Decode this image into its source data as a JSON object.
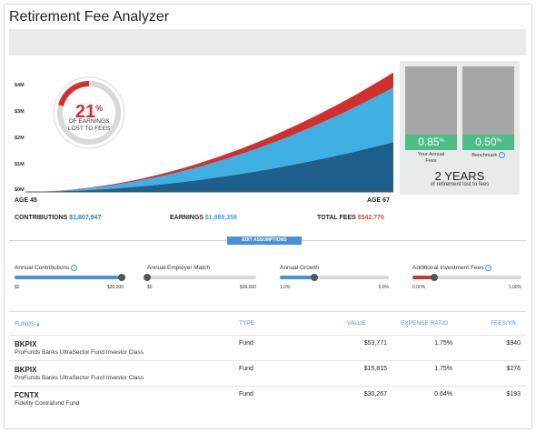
{
  "app": {
    "title": "Retirement Fee Analyzer"
  },
  "chart": {
    "y_ticks": [
      "$4M",
      "$3M",
      "$2M",
      "$1M",
      "$0M"
    ],
    "start_label": "AGE 45",
    "end_label": "AGE 67",
    "colors": {
      "contributions": "#1f5f8b",
      "earnings": "#3fb0e3",
      "fees": "#d32f2f"
    }
  },
  "chart_data": {
    "type": "area",
    "x": [
      "AGE 45",
      "AGE 67"
    ],
    "ylim": [
      0,
      4000000
    ],
    "series": [
      {
        "name": "CONTRIBUTIONS",
        "values": [
          0,
          1807947
        ]
      },
      {
        "name": "EARNINGS",
        "values": [
          0,
          1988358
        ]
      },
      {
        "name": "TOTAL FEES",
        "values": [
          0,
          542776
        ]
      }
    ]
  },
  "donut": {
    "percent": "21",
    "percent_sign": "%",
    "caption_line1": "OF EARNINGS",
    "caption_line2": "LOST TO FEES",
    "fraction": 0.21
  },
  "compare": {
    "yours_value": "0.85",
    "yours_label_1": "Your Annual",
    "yours_label_2": "Fees",
    "benchmark_value": "0.50",
    "benchmark_label": "Benchmark",
    "pct": "%",
    "years_value": "2 YEARS",
    "years_sub": "of retirement lost to fees"
  },
  "totals": {
    "contributions_label": "CONTRIBUTIONS",
    "contributions_value": "$1,807,947",
    "earnings_label": "EARNINGS",
    "earnings_value": "$1,988,358",
    "fees_label": "TOTAL FEES",
    "fees_value": "$542,776"
  },
  "edit_button": "EDIT ASSUMPTIONS",
  "sliders": [
    {
      "label": "Annual Contributions",
      "info": true,
      "min": "$0",
      "max": "$36,000",
      "level": 0.98,
      "color": "#4a90d9"
    },
    {
      "label": "Annual Employer Match",
      "info": false,
      "min": "$0",
      "max": "$36,000",
      "level": 0.0,
      "color": "#4a90d9"
    },
    {
      "label": "Annual Growth",
      "info": false,
      "min": "1.0%",
      "max": "9.0%",
      "level": 0.32,
      "color": "#4a90d9"
    },
    {
      "label": "Additional Investment Fees",
      "info": true,
      "min": "0.00%",
      "max": "1.00%",
      "level": 0.2,
      "color": "#d32f2f"
    }
  ],
  "table": {
    "headers": {
      "funds": "FUNDS ▴",
      "type": "TYPE",
      "value": "VALUE",
      "ratio": "EXPENSE RATIO",
      "fees": "FEES/YR"
    },
    "rows": [
      {
        "ticker": "BKPIX",
        "name": "ProFunds Banks UltraSector Fund Investor Class",
        "type": "Fund",
        "value": "$53,771",
        "ratio": "1.75%",
        "fees": "$940"
      },
      {
        "ticker": "BKPIX",
        "name": "ProFunds Banks UltraSector Fund Investor Class",
        "type": "Fund",
        "value": "$15,815",
        "ratio": "1.75%",
        "fees": "$276"
      },
      {
        "ticker": "FCNTX",
        "name": "Fidelity Contrafund Fund",
        "type": "Fund",
        "value": "$30,267",
        "ratio": "0.64%",
        "fees": "$193"
      }
    ]
  }
}
